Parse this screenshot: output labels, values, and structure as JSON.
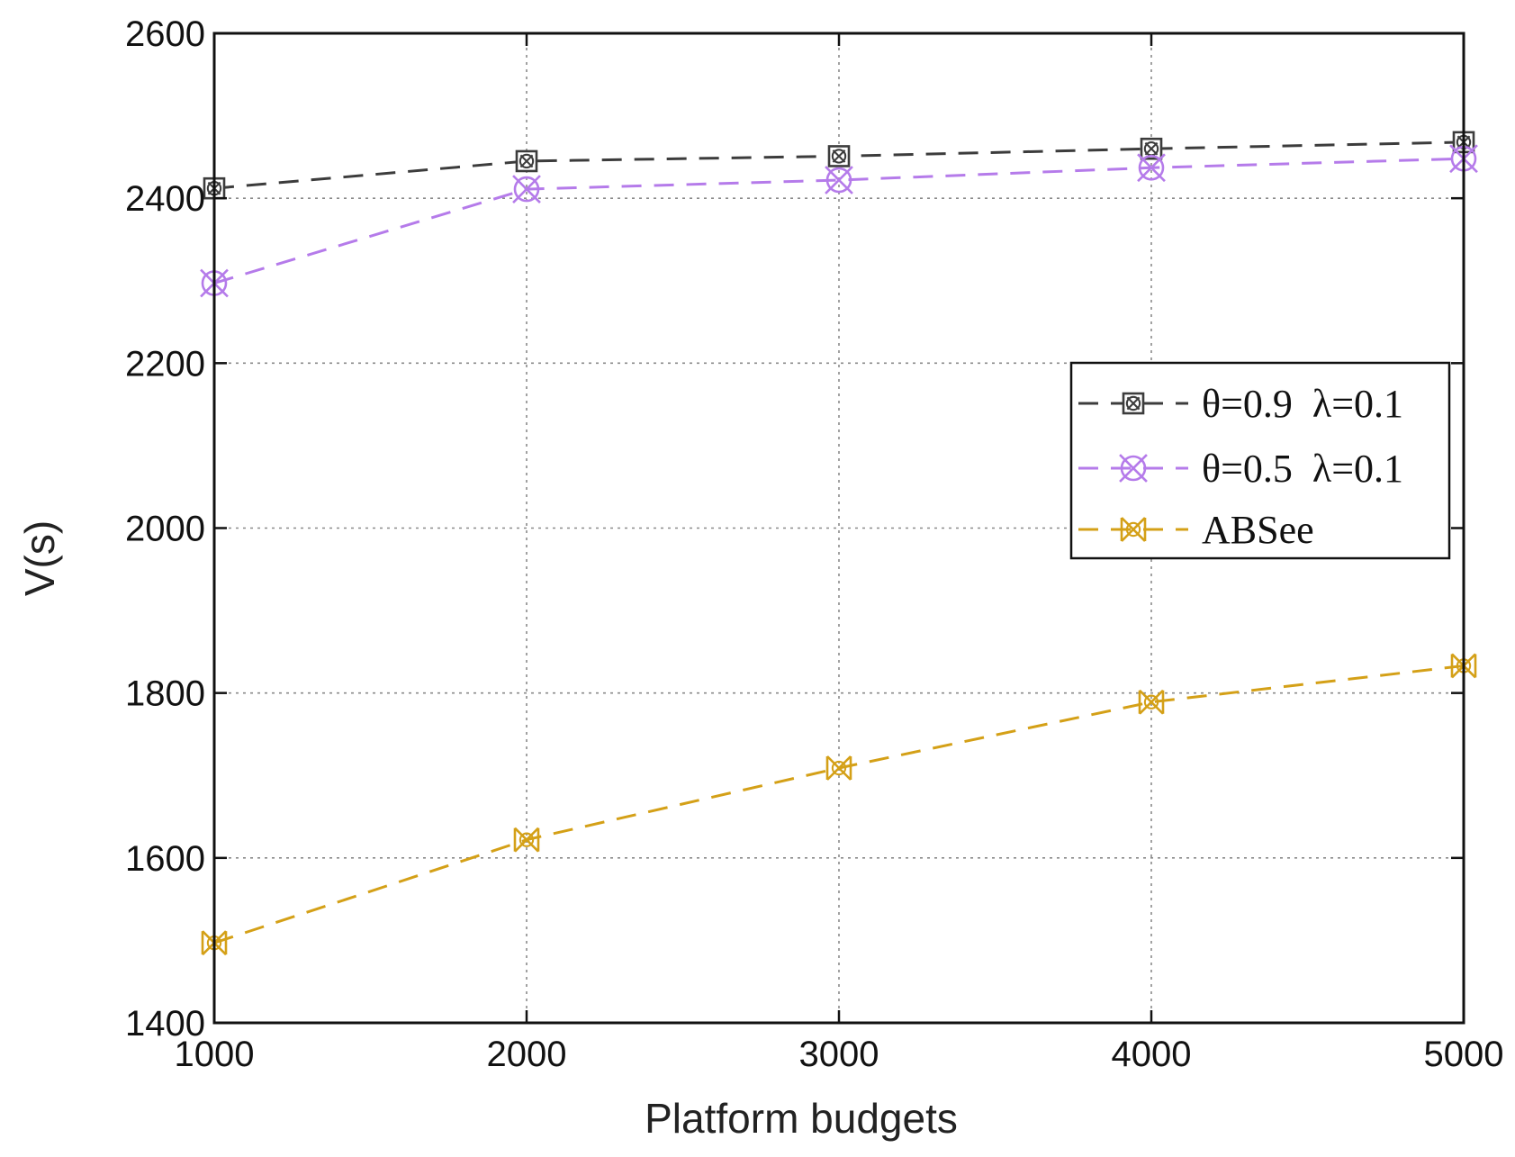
{
  "chart_data": {
    "type": "line",
    "title": "",
    "xlabel": "Platform budgets",
    "ylabel": "V(s)",
    "x": [
      1000,
      2000,
      3000,
      4000,
      5000
    ],
    "xlim": [
      1000,
      5000
    ],
    "ylim": [
      1400,
      2600
    ],
    "xticks": [
      "1000",
      "2000",
      "3000",
      "4000",
      "5000"
    ],
    "yticks": [
      "1400",
      "1600",
      "1800",
      "2000",
      "2200",
      "2400",
      "2600"
    ],
    "grid": true,
    "legend_position": "center-right",
    "series": [
      {
        "name": "θ=0.9  λ=0.1",
        "values": [
          2412,
          2445,
          2451,
          2460,
          2468
        ],
        "color": "#3c3c3c",
        "marker": "boxed-x"
      },
      {
        "name": "θ=0.5  λ=0.1",
        "values": [
          2297,
          2411,
          2422,
          2437,
          2448
        ],
        "color": "#b57bea",
        "marker": "circle-x"
      },
      {
        "name": "ABSee",
        "values": [
          1497,
          1622,
          1709,
          1789,
          1833
        ],
        "color": "#d4a017",
        "marker": "bowtie-x"
      }
    ]
  }
}
